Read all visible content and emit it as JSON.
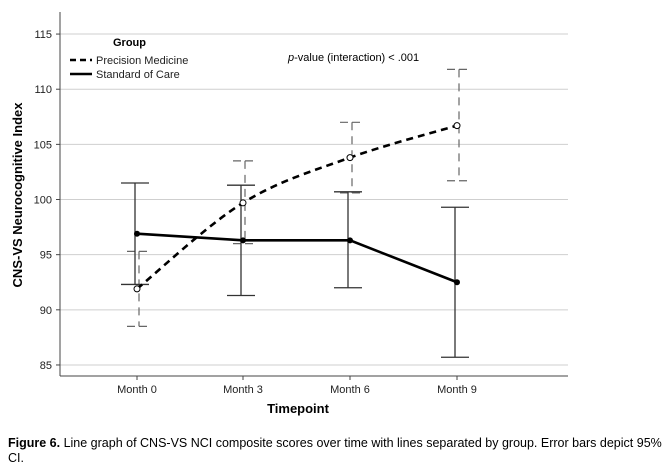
{
  "chart_data": {
    "type": "line",
    "xlabel": "Timepoint",
    "ylabel": "CNS-VS Neurocognitive Index",
    "categories": [
      "Month 0",
      "Month 3",
      "Month 6",
      "Month 9"
    ],
    "ylim": [
      84,
      117
    ],
    "yticks": [
      85,
      90,
      95,
      100,
      105,
      110,
      115
    ],
    "grid": "horizontal",
    "legend": {
      "title": "Group",
      "placement": "top-left"
    },
    "annotation": {
      "italic_part": "p",
      "rest": "-value (interaction) < .001"
    },
    "series": [
      {
        "name": "Precision Medicine",
        "style": "dashed",
        "marker": "open-circle",
        "values": [
          91.9,
          99.7,
          103.8,
          106.7
        ],
        "ci_lower": [
          88.5,
          96.0,
          100.6,
          101.7
        ],
        "ci_upper": [
          95.3,
          103.5,
          107.0,
          111.8
        ]
      },
      {
        "name": "Standard of Care",
        "style": "solid",
        "marker": "filled-circle",
        "values": [
          96.9,
          96.3,
          96.3,
          92.5
        ],
        "ci_lower": [
          92.3,
          91.3,
          92.0,
          85.7
        ],
        "ci_upper": [
          101.5,
          101.3,
          100.7,
          99.3
        ]
      }
    ]
  },
  "caption": {
    "label": "Figure 6.",
    "text": " Line graph of CNS-VS NCI composite scores over time with lines separated by group. Error bars depict 95% CI."
  }
}
